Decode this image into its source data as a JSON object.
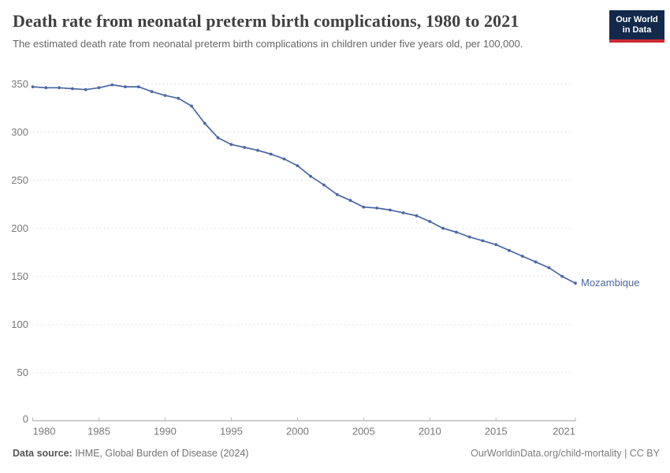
{
  "header": {
    "title": "Death rate from neonatal preterm birth complications, 1980 to 2021",
    "subtitle": "The estimated death rate from neonatal preterm birth complications in children under five years old, per 100,000.",
    "logo": {
      "line1": "Our World",
      "line2": "in Data",
      "bg_color": "#12294b",
      "accent_color": "#cb2a33"
    }
  },
  "chart_data": {
    "type": "line",
    "title": "Death rate from neonatal preterm birth complications, 1980 to 2021",
    "subtitle": "The estimated death rate from neonatal preterm birth complications in children under five years old, per 100,000.",
    "x": [
      1980,
      1981,
      1982,
      1983,
      1984,
      1985,
      1986,
      1987,
      1988,
      1989,
      1990,
      1991,
      1992,
      1993,
      1994,
      1995,
      1996,
      1997,
      1998,
      1999,
      2000,
      2001,
      2002,
      2003,
      2004,
      2005,
      2006,
      2007,
      2008,
      2009,
      2010,
      2011,
      2012,
      2013,
      2014,
      2015,
      2016,
      2017,
      2018,
      2019,
      2020,
      2021
    ],
    "series": [
      {
        "name": "Mozambique",
        "color": "#4a67a3",
        "values": [
          347,
          346,
          346,
          345,
          344,
          346,
          349,
          347,
          347,
          342,
          338,
          335,
          327,
          309,
          294,
          287,
          284,
          281,
          277,
          272,
          265,
          254,
          245,
          235,
          229,
          222,
          221,
          219,
          216,
          213,
          207,
          200,
          196,
          191,
          187,
          183,
          177,
          171,
          165,
          159,
          150,
          143
        ]
      }
    ],
    "xlim": [
      1980,
      2021
    ],
    "ylim": [
      0,
      350
    ],
    "x_ticks": [
      1980,
      1985,
      1990,
      1995,
      2000,
      2005,
      2010,
      2015,
      2021
    ],
    "y_ticks": [
      0,
      50,
      100,
      150,
      200,
      250,
      300,
      350
    ],
    "grid": "horizontal-dashed",
    "legend_position": "end-of-line-label",
    "colors": {
      "gridline": "#e3e3e3",
      "axis": "#a0a0a0",
      "tick": "#b8b8b8",
      "tick_text": "#787878"
    }
  },
  "footer": {
    "source_label": "Data source:",
    "source_value": " IHME, Global Burden of Disease (2024)",
    "credit": "OurWorldinData.org/child-mortality | CC BY"
  }
}
